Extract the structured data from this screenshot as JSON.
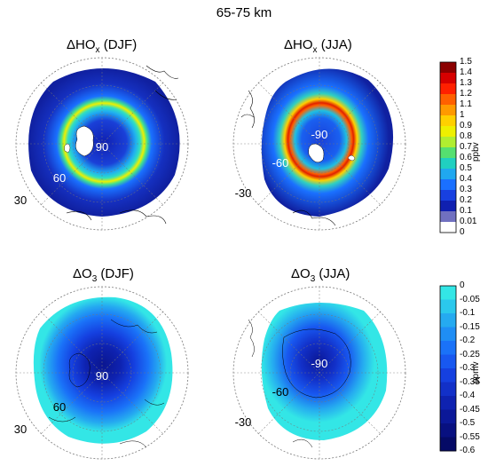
{
  "title": "65-75 km",
  "panels": [
    {
      "id": "hox-djf",
      "delta": "Δ",
      "species": "HO",
      "sub": "x",
      "season": " (DJF)",
      "center_label": "90",
      "lat_labels": [
        "60",
        "30"
      ],
      "hemisphere": "north",
      "field": "hox"
    },
    {
      "id": "hox-jja",
      "delta": "Δ",
      "species": "HO",
      "sub": "x",
      "season": " (JJA)",
      "center_label": "-90",
      "lat_labels": [
        "-60",
        "-30"
      ],
      "hemisphere": "south",
      "field": "hox"
    },
    {
      "id": "o3-djf",
      "delta": "Δ",
      "species": "O",
      "sub": "3",
      "season": " (DJF)",
      "center_label": "90",
      "lat_labels": [
        "60",
        "30"
      ],
      "hemisphere": "north",
      "field": "o3"
    },
    {
      "id": "o3-jja",
      "delta": "Δ",
      "species": "O",
      "sub": "3",
      "season": " (JJA)",
      "center_label": "-90",
      "lat_labels": [
        "-60",
        "-30"
      ],
      "hemisphere": "south",
      "field": "o3"
    }
  ],
  "colorbars": {
    "hox": {
      "unit": "ppbv",
      "ticks": [
        "1.5",
        "1.4",
        "1.3",
        "1.2",
        "1.1",
        "1",
        "0.9",
        "0.8",
        "0.7",
        "0.6",
        "0.5",
        "0.4",
        "0.3",
        "0.2",
        "0.1",
        "0.01",
        "0"
      ],
      "colors": [
        "#8b0000",
        "#d60000",
        "#ff2000",
        "#ff6000",
        "#ff9a00",
        "#ffd000",
        "#eef000",
        "#b0ee30",
        "#55e070",
        "#20d0c0",
        "#20a8f0",
        "#1a70ff",
        "#1840e0",
        "#1020b0",
        "#7070c0",
        "#ffffff"
      ]
    },
    "o3": {
      "unit": "ppmv",
      "ticks": [
        "0",
        "-0.05",
        "-0.1",
        "-0.15",
        "-0.2",
        "-0.25",
        "-0.3",
        "-0.35",
        "-0.4",
        "-0.45",
        "-0.5",
        "-0.55",
        "-0.6"
      ],
      "colors": [
        "#33e6e6",
        "#2bc8ec",
        "#25aaf0",
        "#1f8ef5",
        "#1a72f8",
        "#1858f0",
        "#1540e0",
        "#1230c8",
        "#0e22b0",
        "#0b1898",
        "#081080",
        "#050a66"
      ]
    }
  }
}
